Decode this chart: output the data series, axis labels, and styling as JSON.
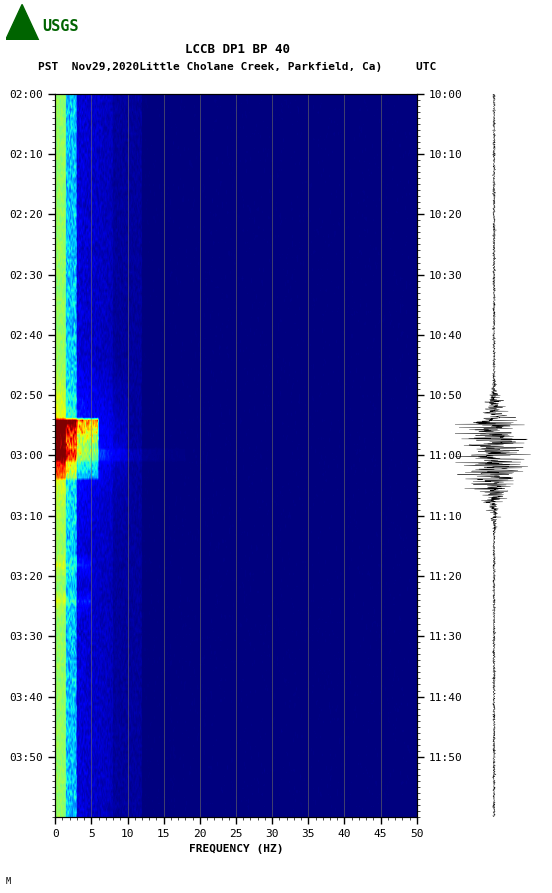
{
  "title_line1": "LCCB DP1 BP 40",
  "title_line2": "PST  Nov29,2020 Little Cholane Creek, Parkfield, Ca)     UTC",
  "title_line2_raw": "PST  Nov29,2020Little Cholane Creek, Parkfield, Ca)     UTC",
  "xlabel": "FREQUENCY (HZ)",
  "left_times": [
    "02:00",
    "02:10",
    "02:20",
    "02:30",
    "02:40",
    "02:50",
    "03:00",
    "03:10",
    "03:20",
    "03:30",
    "03:40",
    "03:50"
  ],
  "right_times": [
    "10:00",
    "10:10",
    "10:20",
    "10:30",
    "10:40",
    "10:50",
    "11:00",
    "11:10",
    "11:20",
    "11:30",
    "11:40",
    "11:50"
  ],
  "freq_ticks": [
    0,
    5,
    10,
    15,
    20,
    25,
    30,
    35,
    40,
    45,
    50
  ],
  "freq_range": [
    0,
    50
  ],
  "n_time_steps": 240,
  "n_freq_steps": 500,
  "fig_bg": "#ffffff",
  "colormap": "jet",
  "usgs_color": "#006400",
  "grid_color": "#808060",
  "grid_alpha": 0.7
}
